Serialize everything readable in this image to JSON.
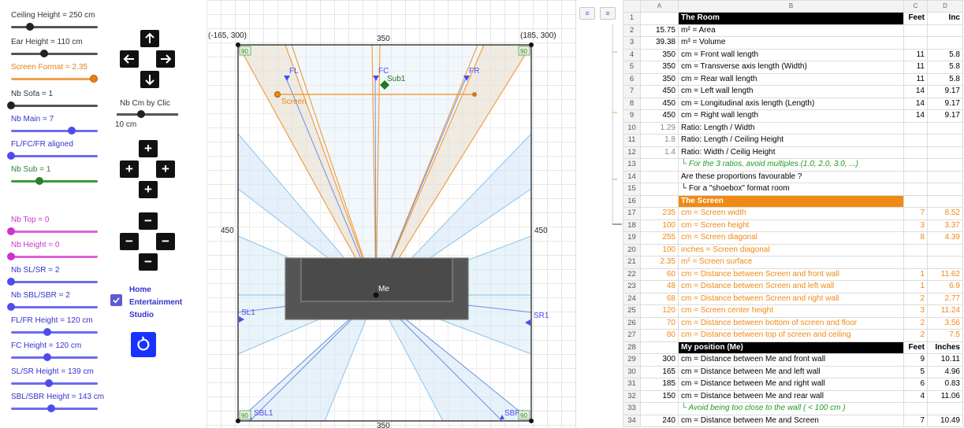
{
  "controls": {
    "sliders": [
      {
        "label": "Ceiling Height = 250 cm",
        "color": "gray",
        "level": 0.22
      },
      {
        "label": "Ear Height = 110 cm",
        "color": "gray",
        "level": 0.38
      },
      {
        "label": "Screen Format = 2.35",
        "color": "orange",
        "level": 0.95
      },
      {
        "label": "Nb Sofa = 1",
        "color": "gray",
        "level": 0.0
      },
      {
        "label": "Nb Main = 7",
        "color": "blue",
        "level": 0.7
      },
      {
        "label": "FL/FC/FR aligned",
        "color": "blue",
        "level": 0.0
      },
      {
        "label": "Nb Sub = 1",
        "color": "green",
        "level": 0.33
      },
      {
        "label": "Nb Top = 0",
        "color": "magenta",
        "level": 0.0
      },
      {
        "label": "Nb Height = 0",
        "color": "magenta",
        "level": 0.0
      },
      {
        "label": "Nb SL/SR = 2",
        "color": "blue",
        "level": 0.0
      },
      {
        "label": "Nb SBL/SBR = 2",
        "color": "blue",
        "level": 0.0
      },
      {
        "label": "FL/FR Height = 120 cm",
        "color": "blue",
        "level": 0.42
      },
      {
        "label": "FC Height = 120 cm",
        "color": "blue",
        "level": 0.42
      },
      {
        "label": "SL/SR Height = 139 cm",
        "color": "blue",
        "level": 0.44
      },
      {
        "label": "SBL/SBR Height = 143 cm",
        "color": "blue",
        "level": 0.46
      }
    ],
    "nb_cm_label": "Nb Cm by Clic",
    "nb_cm_value": "10 cm",
    "home_label_lines": [
      "Home",
      "Entertainment",
      "Studio"
    ],
    "home_checked": true,
    "arrow_icons": [
      "arrow-up-icon",
      "arrow-left-icon",
      "arrow-right-icon",
      "arrow-down-icon"
    ],
    "plus_symbol": "+",
    "minus_symbol": "−",
    "reset_icon": "reset-icon"
  },
  "graphics": {
    "corner_tl": "(-165, 300)",
    "corner_tr": "(185, 300)",
    "top_width": "350",
    "bottom_width": "350",
    "left_depth": "450",
    "right_depth": "450",
    "corner_angle": "90",
    "speakers": {
      "fl": "FL",
      "fc": "FC",
      "fr": "FR",
      "sub": "Sub1",
      "screen": "Screen",
      "sl": "SL1",
      "sr": "SR1",
      "sbl": "SBL1",
      "sbr": "SBR1",
      "me": "Me"
    }
  },
  "sheet": {
    "column_letters": [
      "A",
      "B",
      "C",
      "D"
    ],
    "column_headers": {
      "feet": "Feet",
      "inches": "Inc"
    },
    "rows": [
      {
        "n": "1",
        "a": "",
        "b": "The Room",
        "c": "Feet",
        "d": "Inc",
        "style": "section"
      },
      {
        "n": "2",
        "a": "15.75",
        "b": "m² = Area",
        "c": "",
        "d": "",
        "style": ""
      },
      {
        "n": "3",
        "a": "39.38",
        "b": "m³ = Volume",
        "c": "",
        "d": "",
        "style": ""
      },
      {
        "n": "4",
        "a": "350",
        "b": "cm = Front wall length",
        "c": "11",
        "d": "5.8",
        "style": ""
      },
      {
        "n": "5",
        "a": "350",
        "b": "cm = Transverse axis length (Width)",
        "c": "11",
        "d": "5.8",
        "style": ""
      },
      {
        "n": "6",
        "a": "350",
        "b": "cm = Rear wall length",
        "c": "11",
        "d": "5.8",
        "style": ""
      },
      {
        "n": "7",
        "a": "450",
        "b": "cm = Left wall length",
        "c": "14",
        "d": "9.17",
        "style": ""
      },
      {
        "n": "8",
        "a": "450",
        "b": "cm = Longitudinal axis length (Length)",
        "c": "14",
        "d": "9.17",
        "style": ""
      },
      {
        "n": "9",
        "a": "450",
        "b": "cm = Right wall length",
        "c": "14",
        "d": "9.17",
        "style": ""
      },
      {
        "n": "10",
        "a": "1.29",
        "b": "Ratio: Length / Width",
        "c": "",
        "d": "",
        "style": "gray"
      },
      {
        "n": "11",
        "a": "1.8",
        "b": "Ratio: Length / Ceiling Height",
        "c": "",
        "d": "",
        "style": "gray"
      },
      {
        "n": "12",
        "a": "1.4",
        "b": "Ratio: Width / Ceilig Height",
        "c": "",
        "d": "",
        "style": "gray"
      },
      {
        "n": "13",
        "a": "",
        "b": "└ For the 3 ratios, avoid multiples (1.0, 2.0, 3.0, ...)",
        "c": "",
        "d": "",
        "style": "green"
      },
      {
        "n": "14",
        "a": "",
        "b": "Are these proportions favourable ?",
        "c": "",
        "d": "",
        "style": ""
      },
      {
        "n": "15",
        "a": "",
        "b": "└ For a \"shoebox\" format room",
        "c": "",
        "d": "",
        "style": ""
      },
      {
        "n": "16",
        "a": "",
        "b": "The Screen",
        "c": "",
        "d": "",
        "style": "section-orange"
      },
      {
        "n": "17",
        "a": "235",
        "b": "cm = Screen width",
        "c": "7",
        "d": "8.52",
        "style": "orange"
      },
      {
        "n": "18",
        "a": "100",
        "b": "cm = Screen height",
        "c": "3",
        "d": "3.37",
        "style": "orange"
      },
      {
        "n": "19",
        "a": "255",
        "b": "cm = Screen diagonal",
        "c": "8",
        "d": "4.39",
        "style": "orange"
      },
      {
        "n": "20",
        "a": "100",
        "b": "inches = Screen diagonal",
        "c": "",
        "d": "",
        "style": "orange"
      },
      {
        "n": "21",
        "a": "2.35",
        "b": "m² = Screen surface",
        "c": "",
        "d": "",
        "style": "orange"
      },
      {
        "n": "22",
        "a": "60",
        "b": "cm = Distance between Screen and front wall",
        "c": "1",
        "d": "11.62",
        "style": "orange"
      },
      {
        "n": "23",
        "a": "48",
        "b": "cm = Distance between Screen and left wall",
        "c": "1",
        "d": "6.9",
        "style": "orange"
      },
      {
        "n": "24",
        "a": "68",
        "b": "cm = Distance between Screen and right wall",
        "c": "2",
        "d": "2.77",
        "style": "orange"
      },
      {
        "n": "25",
        "a": "120",
        "b": "cm = Screen center height",
        "c": "3",
        "d": "11.24",
        "style": "orange"
      },
      {
        "n": "26",
        "a": "70",
        "b": "cm = Distance between bottom of screen and floor",
        "c": "2",
        "d": "3.56",
        "style": "orange"
      },
      {
        "n": "27",
        "a": "80",
        "b": "cm = Distance between top of screen and ceiling",
        "c": "2",
        "d": "7.5",
        "style": "orange"
      },
      {
        "n": "28",
        "a": "",
        "b": "My position (Me)",
        "c": "Feet",
        "d": "Inches",
        "style": "section"
      },
      {
        "n": "29",
        "a": "300",
        "b": "cm = Distance between Me and front wall",
        "c": "9",
        "d": "10.11",
        "style": ""
      },
      {
        "n": "30",
        "a": "165",
        "b": "cm = Distance between Me and left wall",
        "c": "5",
        "d": "4.96",
        "style": ""
      },
      {
        "n": "31",
        "a": "185",
        "b": "cm = Distance between Me and right wall",
        "c": "6",
        "d": "0.83",
        "style": ""
      },
      {
        "n": "32",
        "a": "150",
        "b": "cm = Distance between Me and rear wall",
        "c": "4",
        "d": "11.06",
        "style": ""
      },
      {
        "n": "33",
        "a": "",
        "b": "└ Avoid being too close to the wall ( < 100 cm )",
        "c": "",
        "d": "",
        "style": "green"
      },
      {
        "n": "34",
        "a": "240",
        "b": "cm = Distance between Me and Screen",
        "c": "7",
        "d": "10.49",
        "style": ""
      }
    ]
  }
}
